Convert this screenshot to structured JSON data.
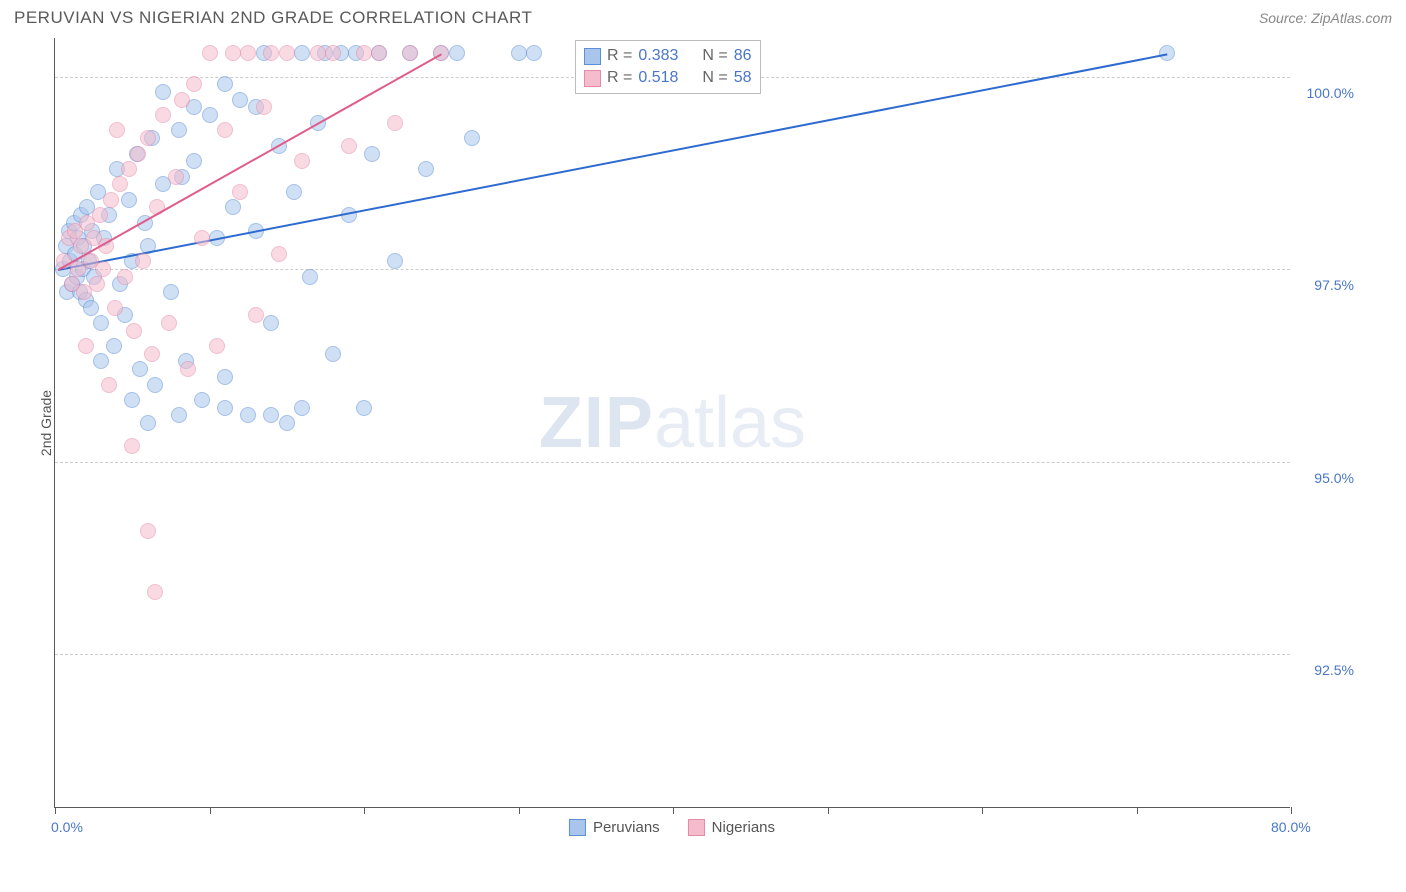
{
  "header": {
    "title": "PERUVIAN VS NIGERIAN 2ND GRADE CORRELATION CHART",
    "source": "Source: ZipAtlas.com"
  },
  "chart": {
    "type": "scatter",
    "background_color": "#ffffff",
    "grid_color": "#cccccc",
    "axis_color": "#5a5a5a",
    "label_color": "#4a76c7",
    "title_fontsize": 17,
    "label_fontsize": 14,
    "y_axis_title": "2nd Grade",
    "xlim": [
      0,
      80
    ],
    "ylim": [
      90.5,
      100.5
    ],
    "x_ticks": [
      0,
      10,
      20,
      30,
      40,
      50,
      60,
      70,
      80
    ],
    "x_tick_labels": {
      "0": "0.0%",
      "80": "80.0%"
    },
    "y_grid": [
      92.5,
      95.0,
      97.5,
      100.0
    ],
    "y_tick_labels": {
      "92.5": "92.5%",
      "95.0": "95.0%",
      "97.5": "97.5%",
      "100.0": "100.0%"
    },
    "marker_radius": 8,
    "marker_opacity": 0.55,
    "series": [
      {
        "name": "Peruvians",
        "fill_color": "#a9c5ec",
        "stroke_color": "#5c8fd6",
        "trend_color": "#2e6bd0",
        "trend_width": 2,
        "r_value": "0.383",
        "n_value": "86",
        "trend": {
          "x1": 0.2,
          "y1": 97.5,
          "x2": 72.0,
          "y2": 100.3
        },
        "points": [
          [
            0.5,
            97.5
          ],
          [
            0.7,
            97.8
          ],
          [
            0.8,
            97.2
          ],
          [
            0.9,
            98.0
          ],
          [
            1.0,
            97.6
          ],
          [
            1.1,
            97.3
          ],
          [
            1.2,
            98.1
          ],
          [
            1.3,
            97.7
          ],
          [
            1.4,
            97.4
          ],
          [
            1.5,
            97.9
          ],
          [
            1.6,
            97.2
          ],
          [
            1.7,
            98.2
          ],
          [
            1.8,
            97.5
          ],
          [
            1.9,
            97.8
          ],
          [
            2.0,
            97.1
          ],
          [
            2.1,
            98.3
          ],
          [
            2.2,
            97.6
          ],
          [
            2.3,
            97.0
          ],
          [
            2.4,
            98.0
          ],
          [
            2.5,
            97.4
          ],
          [
            2.8,
            98.5
          ],
          [
            3.0,
            96.8
          ],
          [
            3.2,
            97.9
          ],
          [
            3.5,
            98.2
          ],
          [
            3.8,
            96.5
          ],
          [
            4.0,
            98.8
          ],
          [
            4.2,
            97.3
          ],
          [
            4.5,
            96.9
          ],
          [
            4.8,
            98.4
          ],
          [
            5.0,
            97.6
          ],
          [
            5.3,
            99.0
          ],
          [
            5.5,
            96.2
          ],
          [
            5.8,
            98.1
          ],
          [
            6.0,
            97.8
          ],
          [
            6.3,
            99.2
          ],
          [
            6.5,
            96.0
          ],
          [
            7.0,
            98.6
          ],
          [
            7.5,
            97.2
          ],
          [
            8.0,
            99.3
          ],
          [
            8.2,
            98.7
          ],
          [
            8.5,
            96.3
          ],
          [
            9.0,
            98.9
          ],
          [
            9.5,
            95.8
          ],
          [
            10.0,
            99.5
          ],
          [
            10.5,
            97.9
          ],
          [
            11.0,
            96.1
          ],
          [
            11.5,
            98.3
          ],
          [
            12.0,
            99.7
          ],
          [
            12.5,
            95.6
          ],
          [
            13.0,
            98.0
          ],
          [
            13.5,
            100.3
          ],
          [
            14.0,
            96.8
          ],
          [
            14.5,
            99.1
          ],
          [
            15.0,
            95.5
          ],
          [
            15.5,
            98.5
          ],
          [
            16.0,
            100.3
          ],
          [
            16.5,
            97.4
          ],
          [
            17.0,
            99.4
          ],
          [
            17.5,
            100.3
          ],
          [
            18.0,
            96.4
          ],
          [
            18.5,
            100.3
          ],
          [
            19.0,
            98.2
          ],
          [
            19.5,
            100.3
          ],
          [
            20.0,
            95.7
          ],
          [
            20.5,
            99.0
          ],
          [
            21.0,
            100.3
          ],
          [
            22.0,
            97.6
          ],
          [
            23.0,
            100.3
          ],
          [
            24.0,
            98.8
          ],
          [
            25.0,
            100.3
          ],
          [
            26.0,
            100.3
          ],
          [
            27.0,
            99.2
          ],
          [
            5.0,
            95.8
          ],
          [
            6.0,
            95.5
          ],
          [
            8.0,
            95.6
          ],
          [
            11.0,
            95.7
          ],
          [
            14.0,
            95.6
          ],
          [
            16.0,
            95.7
          ],
          [
            30.0,
            100.3
          ],
          [
            31.0,
            100.3
          ],
          [
            7.0,
            99.8
          ],
          [
            9.0,
            99.6
          ],
          [
            11.0,
            99.9
          ],
          [
            13.0,
            99.6
          ],
          [
            72.0,
            100.3
          ],
          [
            3.0,
            96.3
          ]
        ]
      },
      {
        "name": "Nigerians",
        "fill_color": "#f5bccd",
        "stroke_color": "#e58aa8",
        "trend_color": "#e05c8a",
        "trend_width": 2,
        "r_value": "0.518",
        "n_value": "58",
        "trend": {
          "x1": 0.2,
          "y1": 97.5,
          "x2": 25.0,
          "y2": 100.3
        },
        "points": [
          [
            0.6,
            97.6
          ],
          [
            0.9,
            97.9
          ],
          [
            1.1,
            97.3
          ],
          [
            1.3,
            98.0
          ],
          [
            1.5,
            97.5
          ],
          [
            1.7,
            97.8
          ],
          [
            1.9,
            97.2
          ],
          [
            2.1,
            98.1
          ],
          [
            2.3,
            97.6
          ],
          [
            2.5,
            97.9
          ],
          [
            2.7,
            97.3
          ],
          [
            2.9,
            98.2
          ],
          [
            3.1,
            97.5
          ],
          [
            3.3,
            97.8
          ],
          [
            3.6,
            98.4
          ],
          [
            3.9,
            97.0
          ],
          [
            4.2,
            98.6
          ],
          [
            4.5,
            97.4
          ],
          [
            4.8,
            98.8
          ],
          [
            5.1,
            96.7
          ],
          [
            5.4,
            99.0
          ],
          [
            5.7,
            97.6
          ],
          [
            6.0,
            99.2
          ],
          [
            6.3,
            96.4
          ],
          [
            6.6,
            98.3
          ],
          [
            7.0,
            99.5
          ],
          [
            7.4,
            96.8
          ],
          [
            7.8,
            98.7
          ],
          [
            8.2,
            99.7
          ],
          [
            8.6,
            96.2
          ],
          [
            9.0,
            99.9
          ],
          [
            9.5,
            97.9
          ],
          [
            10.0,
            100.3
          ],
          [
            10.5,
            96.5
          ],
          [
            11.0,
            99.3
          ],
          [
            11.5,
            100.3
          ],
          [
            12.0,
            98.5
          ],
          [
            12.5,
            100.3
          ],
          [
            13.0,
            96.9
          ],
          [
            13.5,
            99.6
          ],
          [
            14.0,
            100.3
          ],
          [
            14.5,
            97.7
          ],
          [
            15.0,
            100.3
          ],
          [
            16.0,
            98.9
          ],
          [
            17.0,
            100.3
          ],
          [
            18.0,
            100.3
          ],
          [
            19.0,
            99.1
          ],
          [
            20.0,
            100.3
          ],
          [
            21.0,
            100.3
          ],
          [
            22.0,
            99.4
          ],
          [
            23.0,
            100.3
          ],
          [
            25.0,
            100.3
          ],
          [
            5.0,
            95.2
          ],
          [
            6.5,
            93.3
          ],
          [
            6.0,
            94.1
          ],
          [
            4.0,
            99.3
          ],
          [
            2.0,
            96.5
          ],
          [
            3.5,
            96.0
          ]
        ]
      }
    ],
    "watermark": {
      "zip": "ZIP",
      "atlas": "atlas"
    },
    "legend": {
      "peruvians": "Peruvians",
      "nigerians": "Nigerians"
    },
    "stat_labels": {
      "r": "R =",
      "n": "N ="
    }
  }
}
